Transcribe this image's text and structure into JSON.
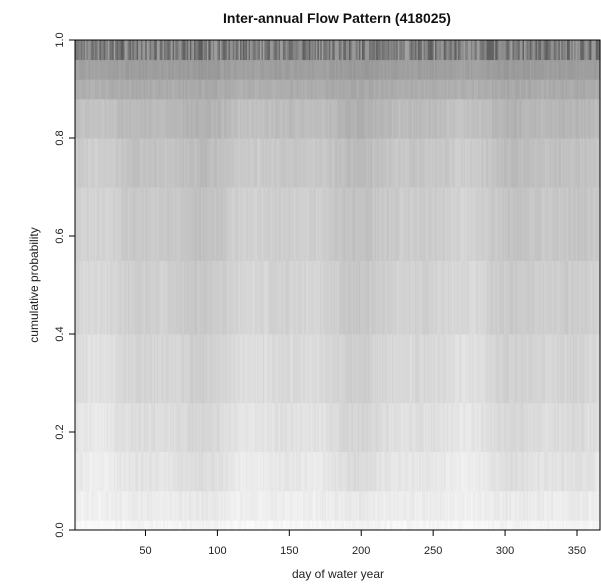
{
  "chart_data": {
    "type": "heatmap",
    "title": "Inter-annual Flow Pattern (418025)",
    "xlabel": "day of water year",
    "ylabel": "cumulative probability",
    "xlim": [
      1,
      366
    ],
    "ylim": [
      0,
      1
    ],
    "x_ticks": [
      "50",
      "100",
      "150",
      "200",
      "250",
      "300",
      "350"
    ],
    "y_ticks": [
      "0.0",
      "0.2",
      "0.4",
      "0.6",
      "0.8",
      "1.0"
    ],
    "grid": false,
    "legend": "none",
    "colors": {
      "background": "#ffffff",
      "axis": "#000000",
      "light": "#f4f4f4",
      "dark": "#3c3c3c"
    },
    "probability_bands": [
      {
        "from": 0.0,
        "to": 0.02,
        "shade": 245
      },
      {
        "from": 0.02,
        "to": 0.08,
        "shade": 236
      },
      {
        "from": 0.08,
        "to": 0.16,
        "shade": 229
      },
      {
        "from": 0.16,
        "to": 0.26,
        "shade": 222
      },
      {
        "from": 0.26,
        "to": 0.4,
        "shade": 215
      },
      {
        "from": 0.4,
        "to": 0.55,
        "shade": 208
      },
      {
        "from": 0.55,
        "to": 0.7,
        "shade": 202
      },
      {
        "from": 0.7,
        "to": 0.8,
        "shade": 196
      },
      {
        "from": 0.8,
        "to": 0.88,
        "shade": 186
      },
      {
        "from": 0.88,
        "to": 0.92,
        "shade": 172
      },
      {
        "from": 0.92,
        "to": 0.96,
        "shade": 158
      },
      {
        "from": 0.96,
        "to": 1.0,
        "shade": 128
      }
    ]
  }
}
